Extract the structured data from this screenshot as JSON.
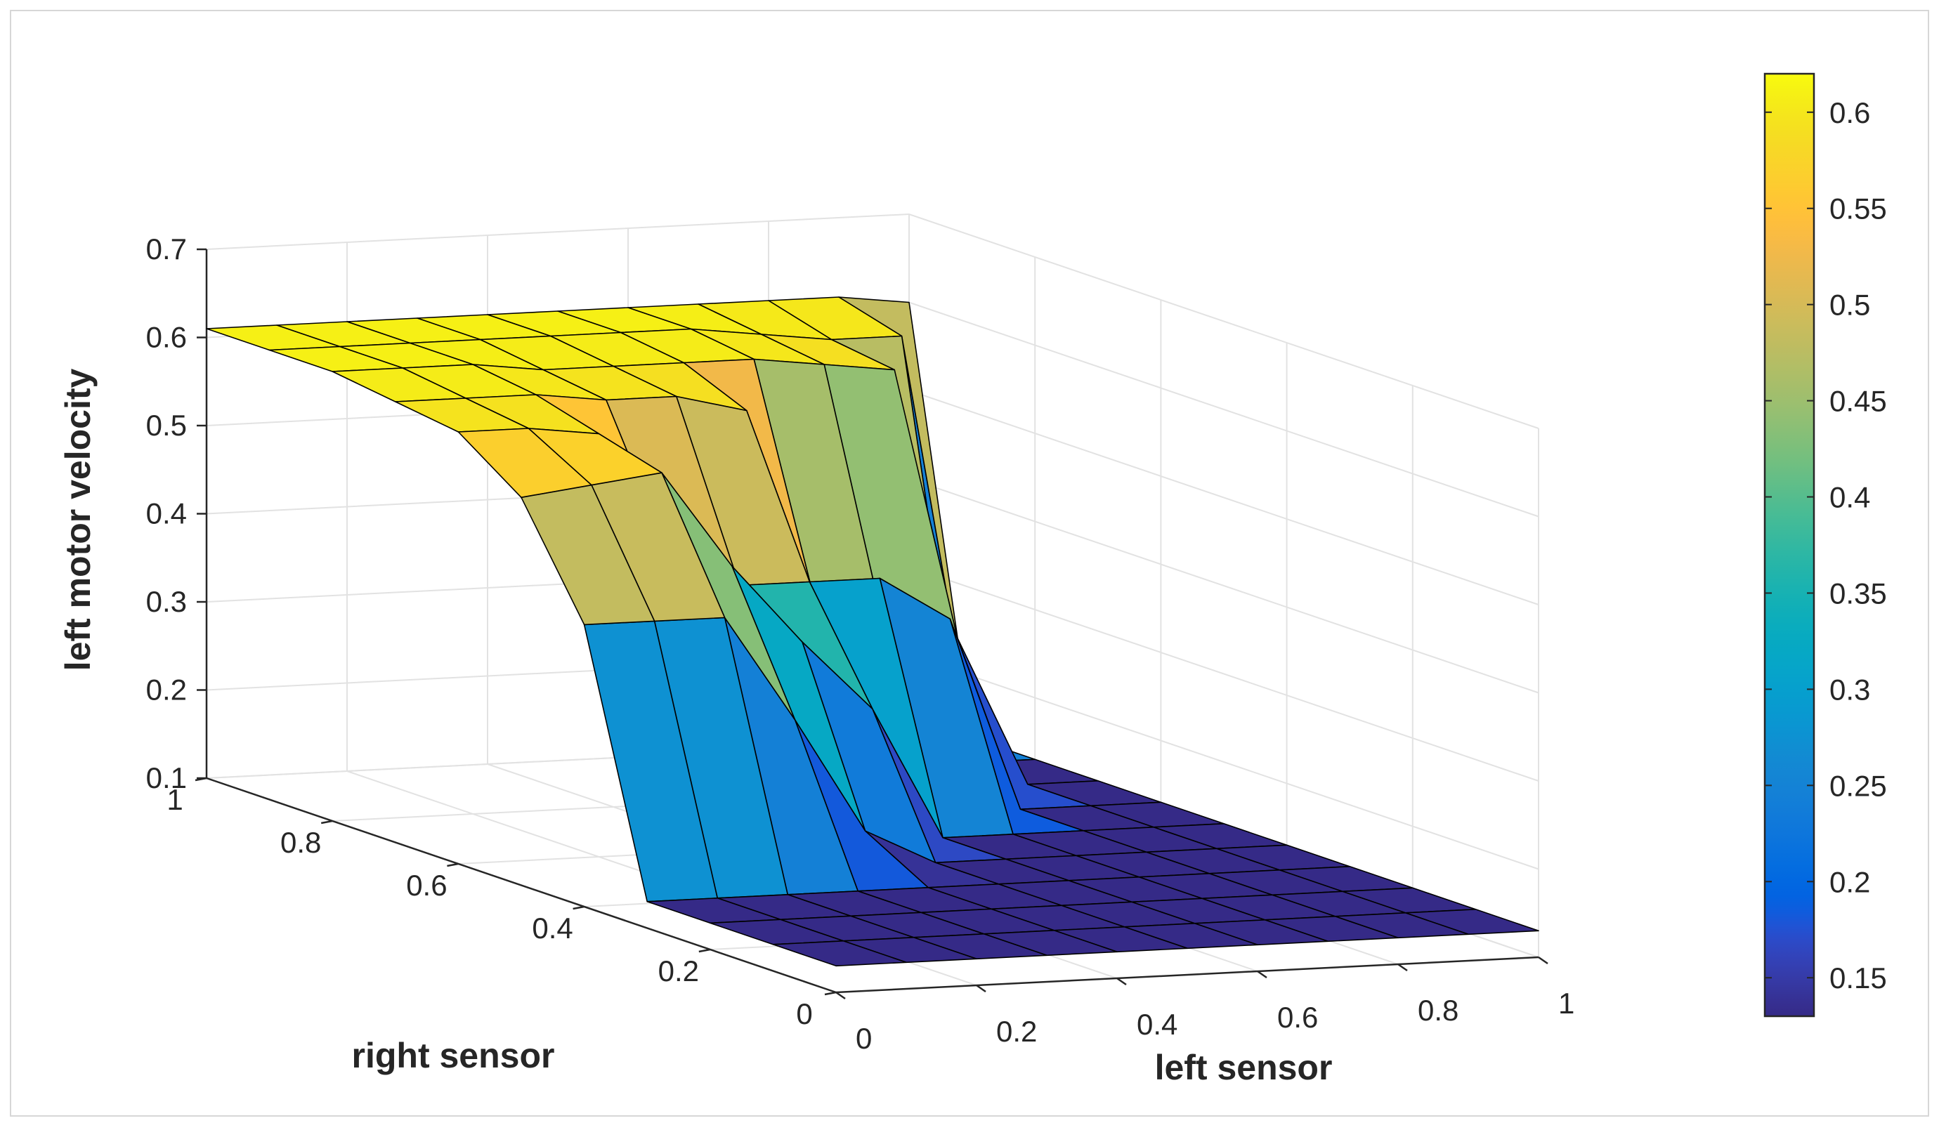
{
  "chart_data": {
    "type": "surface",
    "title": "",
    "xlabel": "left sensor",
    "ylabel": "right sensor",
    "zlabel": "left motor velocity",
    "x_ticks": [
      0,
      0.2,
      0.4,
      0.6,
      0.8,
      1
    ],
    "y_ticks": [
      0,
      0.2,
      0.4,
      0.6,
      0.8,
      1
    ],
    "z_ticks": [
      0.1,
      0.2,
      0.3,
      0.4,
      0.5,
      0.6,
      0.7
    ],
    "x_tick_labels": [
      "0",
      "0.2",
      "0.4",
      "0.6",
      "0.8",
      "1"
    ],
    "y_tick_labels": [
      "0",
      "0.2",
      "0.4",
      "0.6",
      "0.8",
      "1"
    ],
    "z_tick_labels": [
      "0.1",
      "0.2",
      "0.3",
      "0.4",
      "0.5",
      "0.6",
      "0.7"
    ],
    "xlim": [
      0,
      1
    ],
    "ylim": [
      0,
      1
    ],
    "zlim": [
      0.1,
      0.7
    ],
    "grid": true,
    "colormap": "parula",
    "colorbar": {
      "range": [
        0.13,
        0.62
      ],
      "ticks": [
        0.15,
        0.2,
        0.25,
        0.3,
        0.35,
        0.4,
        0.45,
        0.5,
        0.55,
        0.6
      ],
      "tick_labels": [
        "0.15",
        "0.2",
        "0.25",
        "0.3",
        "0.35",
        "0.4",
        "0.45",
        "0.5",
        "0.55",
        "0.6"
      ]
    },
    "x": [
      0,
      0.1,
      0.2,
      0.3,
      0.4,
      0.5,
      0.6,
      0.7,
      0.8,
      0.9,
      1.0
    ],
    "y": [
      0,
      0.1,
      0.2,
      0.3,
      0.4,
      0.5,
      0.6,
      0.7,
      0.8,
      0.9,
      1.0
    ],
    "z_rows_by_y": [
      [
        0.13,
        0.13,
        0.13,
        0.13,
        0.13,
        0.13,
        0.13,
        0.13,
        0.13,
        0.13,
        0.13
      ],
      [
        0.13,
        0.13,
        0.13,
        0.13,
        0.13,
        0.13,
        0.13,
        0.13,
        0.13,
        0.13,
        0.13
      ],
      [
        0.13,
        0.13,
        0.13,
        0.13,
        0.13,
        0.13,
        0.13,
        0.13,
        0.13,
        0.13,
        0.13
      ],
      [
        0.13,
        0.13,
        0.13,
        0.13,
        0.13,
        0.13,
        0.13,
        0.13,
        0.13,
        0.13,
        0.13
      ],
      [
        0.42,
        0.42,
        0.42,
        0.3,
        0.17,
        0.13,
        0.13,
        0.13,
        0.13,
        0.13,
        0.13
      ],
      [
        0.54,
        0.55,
        0.56,
        0.45,
        0.36,
        0.28,
        0.13,
        0.13,
        0.13,
        0.13,
        0.13
      ],
      [
        0.59,
        0.59,
        0.58,
        0.44,
        0.4,
        0.4,
        0.4,
        0.35,
        0.13,
        0.13,
        0.13
      ],
      [
        0.6,
        0.6,
        0.6,
        0.59,
        0.59,
        0.57,
        0.34,
        0.3,
        0.3,
        0.13,
        0.13
      ],
      [
        0.61,
        0.61,
        0.61,
        0.6,
        0.6,
        0.6,
        0.6,
        0.59,
        0.58,
        0.13,
        0.13
      ],
      [
        0.61,
        0.61,
        0.61,
        0.61,
        0.61,
        0.61,
        0.61,
        0.6,
        0.59,
        0.59,
        0.13
      ],
      [
        0.61,
        0.61,
        0.61,
        0.61,
        0.61,
        0.61,
        0.61,
        0.61,
        0.61,
        0.61,
        0.6
      ]
    ]
  }
}
